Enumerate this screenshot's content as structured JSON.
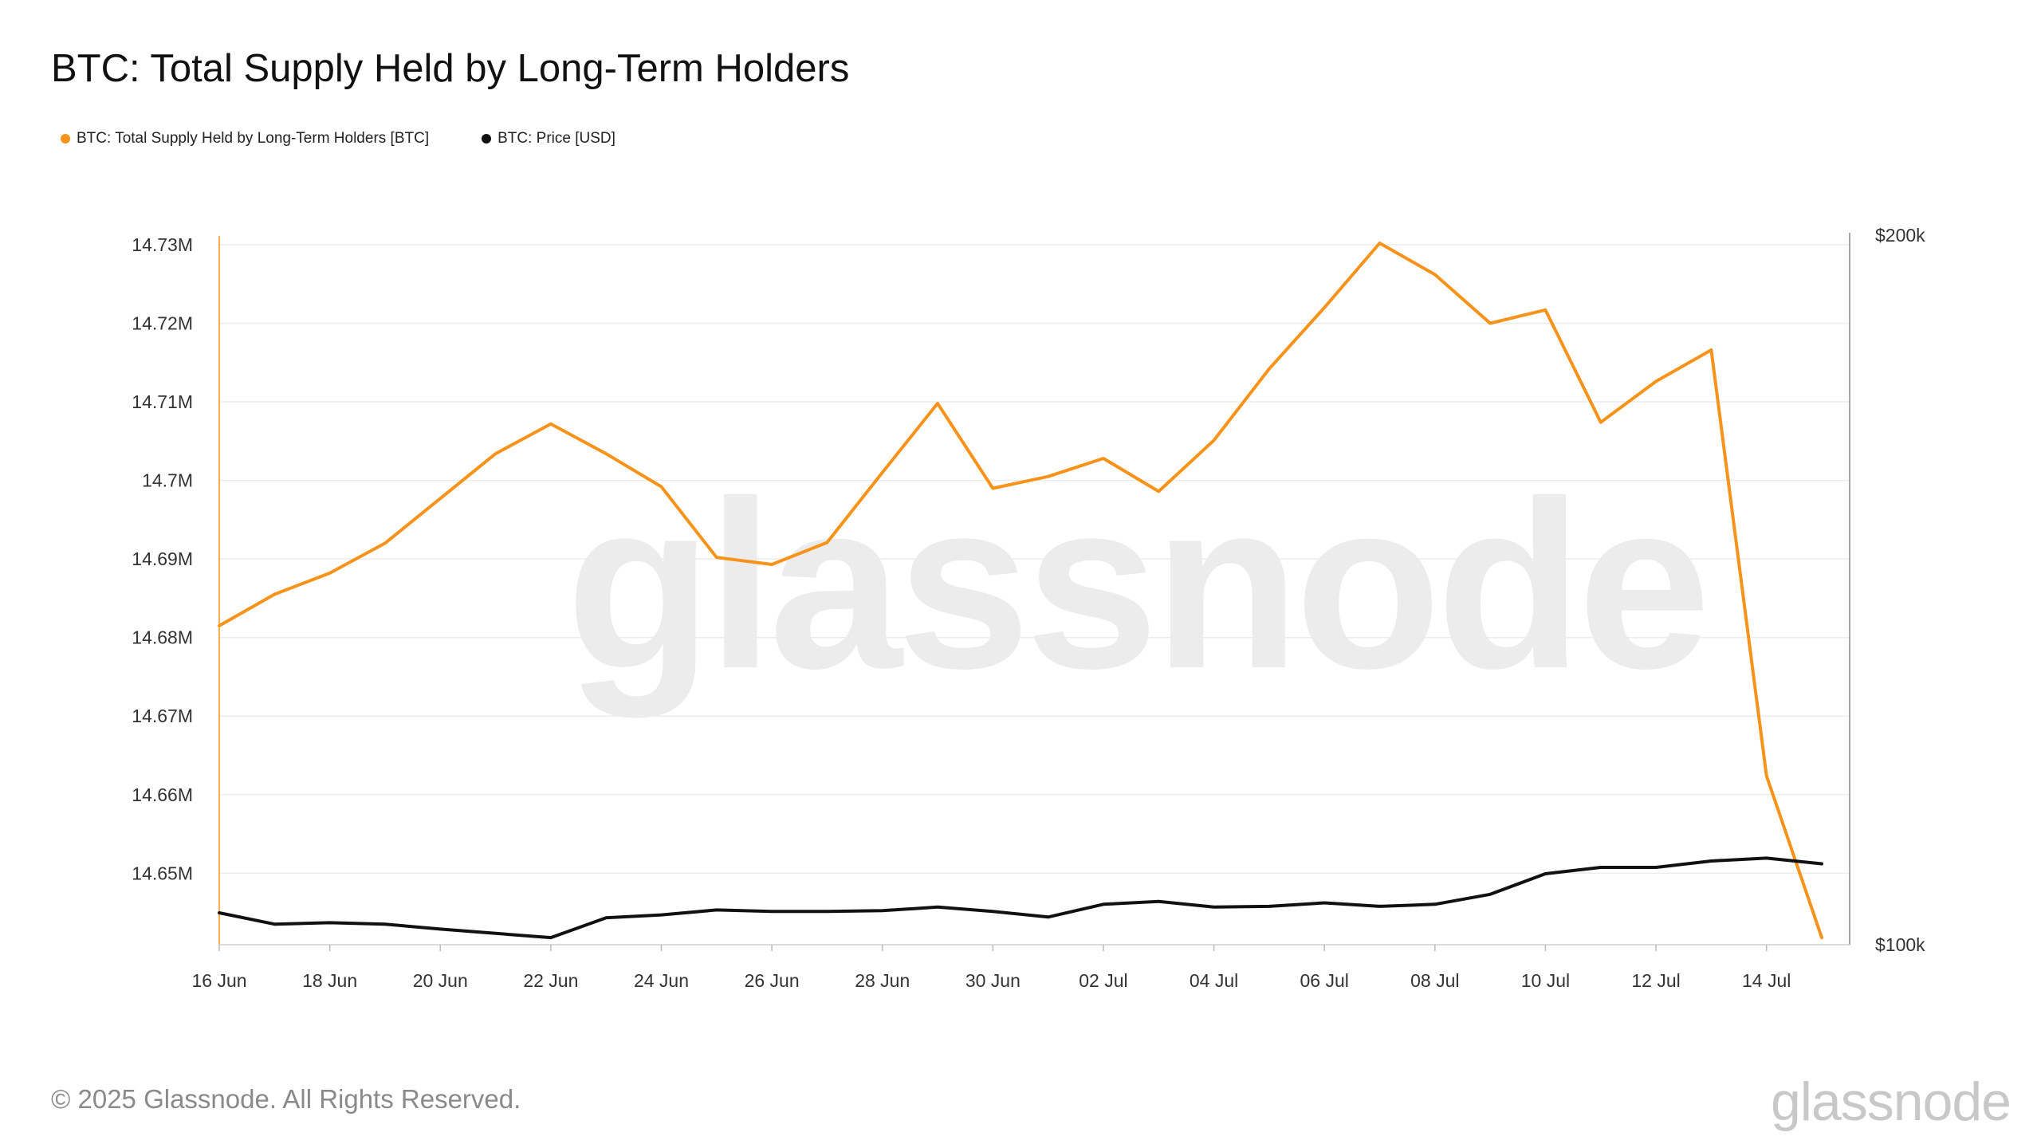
{
  "title": "BTC: Total Supply Held by Long-Term Holders",
  "legend": [
    {
      "label": "BTC: Total Supply Held by Long-Term Holders [BTC]",
      "color": "#F7931A"
    },
    {
      "label": "BTC: Price [USD]",
      "color": "#111111"
    }
  ],
  "watermark": "glassnode",
  "footer": {
    "copyright": "© 2025 Glassnode. All Rights Reserved.",
    "logo": "glassnode"
  },
  "chart_data": {
    "type": "line",
    "x": [
      "16 Jun",
      "17 Jun",
      "18 Jun",
      "19 Jun",
      "20 Jun",
      "21 Jun",
      "22 Jun",
      "23 Jun",
      "24 Jun",
      "25 Jun",
      "26 Jun",
      "27 Jun",
      "28 Jun",
      "29 Jun",
      "30 Jun",
      "01 Jul",
      "02 Jul",
      "03 Jul",
      "04 Jul",
      "05 Jul",
      "06 Jul",
      "07 Jul",
      "08 Jul",
      "09 Jul",
      "10 Jul",
      "11 Jul",
      "12 Jul",
      "13 Jul",
      "14 Jul",
      "15 Jul"
    ],
    "x_ticks": [
      "16 Jun",
      "18 Jun",
      "20 Jun",
      "22 Jun",
      "24 Jun",
      "26 Jun",
      "28 Jun",
      "30 Jun",
      "02 Jul",
      "04 Jul",
      "06 Jul",
      "08 Jul",
      "10 Jul",
      "12 Jul",
      "14 Jul"
    ],
    "series": [
      {
        "name": "BTC: Total Supply Held by Long-Term Holders [BTC]",
        "axis": "left",
        "color": "#F7931A",
        "values": [
          14681500,
          14685500,
          14688200,
          14692000,
          14697700,
          14703400,
          14707200,
          14703400,
          14699200,
          14690200,
          14689300,
          14692100,
          14701000,
          14709800,
          14699000,
          14700500,
          14702800,
          14698600,
          14705100,
          14714200,
          14722000,
          14730200,
          14726200,
          14720000,
          14721700,
          14707400,
          14712600,
          14716600,
          14662400,
          14641800
        ]
      },
      {
        "name": "BTC: Price [USD]",
        "axis": "right",
        "color": "#111111",
        "values": [
          104500,
          102900,
          103100,
          102900,
          102200,
          101600,
          101000,
          103800,
          104200,
          104900,
          104700,
          104700,
          104800,
          105300,
          104700,
          103900,
          105700,
          106100,
          105300,
          105400,
          105900,
          105400,
          105700,
          107100,
          110000,
          110900,
          110900,
          111800,
          112200,
          111400
        ]
      }
    ],
    "y_left": {
      "ticks": [
        "14.65M",
        "14.66M",
        "14.67M",
        "14.68M",
        "14.69M",
        "14.7M",
        "14.71M",
        "14.72M",
        "14.73M"
      ],
      "range": [
        14640900,
        14730200
      ]
    },
    "y_right": {
      "ticks": [
        "$100k",
        "$200k"
      ],
      "range": [
        100000,
        200000
      ]
    },
    "grid": true
  }
}
